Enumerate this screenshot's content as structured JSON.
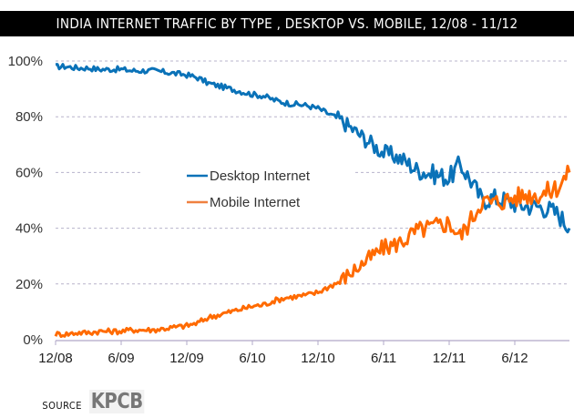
{
  "header": {
    "title": "INDIA INTERNET TRAFFIC BY TYPE , DESKTOP VS. MOBILE, 12/08 - 11/12"
  },
  "footer": {
    "source_label": "SOURCE",
    "source_name": "KPCB"
  },
  "chart_data": {
    "type": "line",
    "title": "INDIA INTERNET TRAFFIC BY TYPE , DESKTOP VS. MOBILE, 12/08 - 11/12",
    "xlabel": "",
    "ylabel": "",
    "ylim": [
      0,
      100
    ],
    "y_ticks": [
      "0%",
      "20%",
      "40%",
      "60%",
      "80%",
      "100%"
    ],
    "y_tick_values": [
      0,
      20,
      40,
      60,
      80,
      100
    ],
    "x_ticks": [
      "12/08",
      "6/09",
      "12/09",
      "6/10",
      "12/10",
      "6/11",
      "12/11",
      "6/12"
    ],
    "x_tick_months": [
      0,
      6,
      12,
      18,
      24,
      30,
      36,
      42
    ],
    "x_range_months": [
      0,
      47
    ],
    "x": [
      "12/08",
      "1/09",
      "2/09",
      "3/09",
      "4/09",
      "5/09",
      "6/09",
      "7/09",
      "8/09",
      "9/09",
      "10/09",
      "11/09",
      "12/09",
      "1/10",
      "2/10",
      "3/10",
      "4/10",
      "5/10",
      "6/10",
      "7/10",
      "8/10",
      "9/10",
      "10/10",
      "11/10",
      "12/10",
      "1/11",
      "2/11",
      "3/11",
      "4/11",
      "5/11",
      "6/11",
      "7/11",
      "8/11",
      "9/11",
      "10/11",
      "11/11",
      "12/11",
      "1/12",
      "2/12",
      "3/12",
      "4/12",
      "5/12",
      "6/12",
      "7/12",
      "8/12",
      "9/12",
      "10/12",
      "11/12"
    ],
    "grid": true,
    "grid_style": "dashed horizontal",
    "legend": "center",
    "series": [
      {
        "name": "Desktop Internet",
        "color": "#0a72b8",
        "values": [
          98,
          98,
          97.5,
          97.5,
          97,
          97,
          97,
          96.5,
          96.5,
          96.5,
          96,
          95.5,
          95,
          94,
          92,
          91,
          90,
          89,
          88,
          87.5,
          86,
          85,
          84.5,
          84,
          83,
          81,
          79,
          76,
          73,
          70,
          67,
          66,
          64,
          61,
          60,
          59,
          58,
          63,
          57,
          50,
          51,
          50,
          49,
          48,
          48,
          47,
          45,
          40
        ]
      },
      {
        "name": "Mobile Internet",
        "color": "#ff6a00",
        "values": [
          2,
          2,
          2.5,
          2.5,
          3,
          3,
          3,
          3.5,
          3.5,
          3.5,
          4,
          4.5,
          5,
          6,
          8,
          9,
          10,
          11,
          12,
          12.5,
          14,
          15,
          15.5,
          16,
          17,
          19,
          21,
          24,
          27,
          30,
          33,
          34,
          36,
          39,
          40,
          41,
          42,
          37,
          43,
          50,
          49,
          50,
          51,
          52,
          52,
          53,
          55,
          60
        ]
      }
    ]
  }
}
